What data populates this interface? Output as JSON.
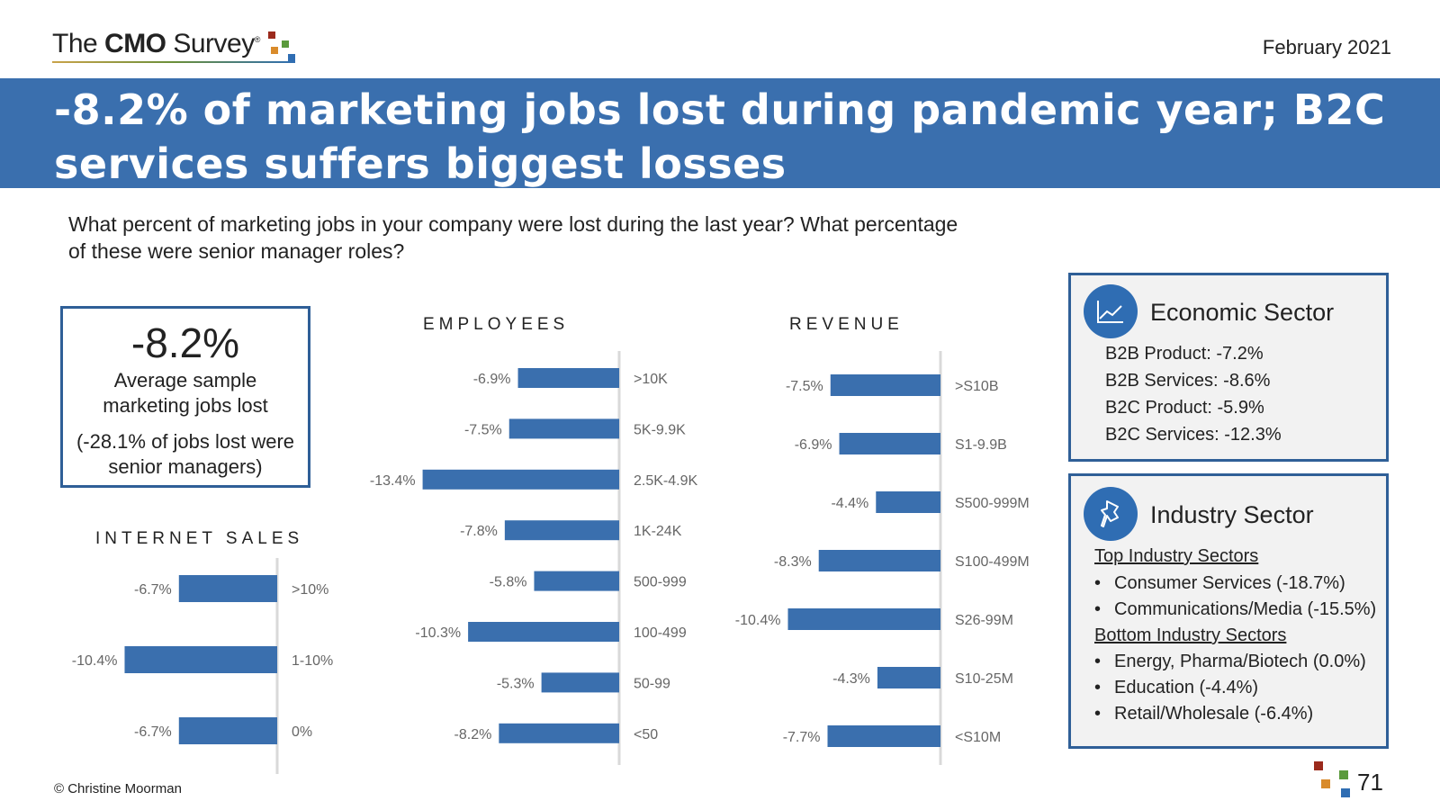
{
  "header": {
    "logo_prefix": "The ",
    "logo_bold": "CMO",
    "logo_suffix": " Survey",
    "logo_reg": "®",
    "date": "February 2021"
  },
  "title": "-8.2% of marketing jobs lost during pandemic year; B2C services suffers biggest losses",
  "question": "What percent of marketing jobs in your company were lost during the last year? What percentage of these were senior manager roles?",
  "kpi": {
    "value": "-8.2%",
    "label": "Average sample marketing jobs lost",
    "sub": "(-28.1% of jobs lost were senior managers)"
  },
  "economic_sector": {
    "title": "Economic Sector",
    "items": [
      "B2B Product: -7.2%",
      "B2B Services: -8.6%",
      "B2C Product: -5.9%",
      "B2C Services: -12.3%"
    ]
  },
  "industry_sector": {
    "title": "Industry Sector",
    "top_heading": "Top Industry Sectors",
    "top_items": [
      "Consumer Services (-18.7%)",
      "Communications/Media (-15.5%)"
    ],
    "bottom_heading": "Bottom Industry Sectors",
    "bottom_items": [
      "Energy, Pharma/Biotech (0.0%)",
      "Education (-4.4%)",
      "Retail/Wholesale (-6.4%)"
    ]
  },
  "footer": {
    "copyright": "© Christine Moorman",
    "page": "71"
  },
  "colors": {
    "bar": "#3a6fae",
    "banner": "#3a6fae",
    "panel_border": "#2f5f97",
    "logo_squares": [
      "#9b2a1c",
      "#5a9a3c",
      "#d98b2b",
      "#2f6db3"
    ]
  },
  "chart_data": [
    {
      "type": "bar",
      "title": "EMPLOYEES",
      "categories": [
        ">10K",
        "5K-9.9K",
        "2.5K-4.9K",
        "1K-24K",
        "500-999",
        "100-499",
        "50-99",
        "<50"
      ],
      "values": [
        -6.9,
        -7.5,
        -13.4,
        -7.8,
        -5.8,
        -10.3,
        -5.3,
        -8.2
      ],
      "value_labels": [
        "-6.9%",
        "-7.5%",
        "-13.4%",
        "-7.8%",
        "-5.8%",
        "-10.3%",
        "-5.3%",
        "-8.2%"
      ]
    },
    {
      "type": "bar",
      "title": "REVENUE",
      "categories": [
        ">S10B",
        "S1-9.9B",
        "S500-999M",
        "S100-499M",
        "S26-99M",
        "S10-25M",
        "<S10M"
      ],
      "values": [
        -7.5,
        -6.9,
        -4.4,
        -8.3,
        -10.4,
        -4.3,
        -7.7
      ],
      "value_labels": [
        "-7.5%",
        "-6.9%",
        "-4.4%",
        "-8.3%",
        "-10.4%",
        "-4.3%",
        "-7.7%"
      ]
    },
    {
      "type": "bar",
      "title": "INTERNET SALES",
      "categories": [
        ">10%",
        "1-10%",
        "0%"
      ],
      "values": [
        -6.7,
        -10.4,
        -6.7
      ],
      "value_labels": [
        "-6.7%",
        "-10.4%",
        "-6.7%"
      ]
    }
  ]
}
